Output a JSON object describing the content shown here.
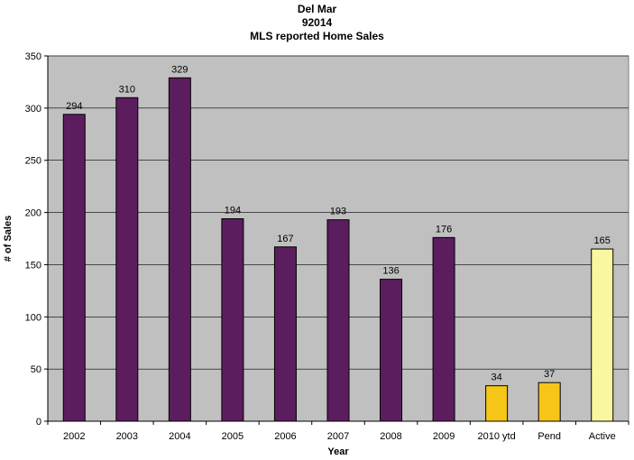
{
  "chart_data": {
    "type": "bar",
    "title": [
      "Del Mar",
      "92014",
      "MLS reported Home Sales"
    ],
    "xlabel": "Year",
    "ylabel": "# of Sales",
    "ylim": [
      0,
      350
    ],
    "yticks": [
      0,
      50,
      100,
      150,
      200,
      250,
      300,
      350
    ],
    "grid": true,
    "legend": "none",
    "plot_background": "#C0C0C0",
    "categories": [
      "2002",
      "2003",
      "2004",
      "2005",
      "2006",
      "2007",
      "2008",
      "2009",
      "2010 ytd",
      "Pend",
      "Active"
    ],
    "values": [
      294,
      310,
      329,
      194,
      167,
      193,
      136,
      176,
      34,
      37,
      165
    ],
    "colors": [
      "#5C1D5F",
      "#5C1D5F",
      "#5C1D5F",
      "#5C1D5F",
      "#5C1D5F",
      "#5C1D5F",
      "#5C1D5F",
      "#5C1D5F",
      "#F5C518",
      "#F5C518",
      "#FAF7A0"
    ],
    "data_labels": [
      "294",
      "310",
      "329",
      "194",
      "167",
      "193",
      "136",
      "176",
      "34",
      "37",
      "165"
    ]
  }
}
